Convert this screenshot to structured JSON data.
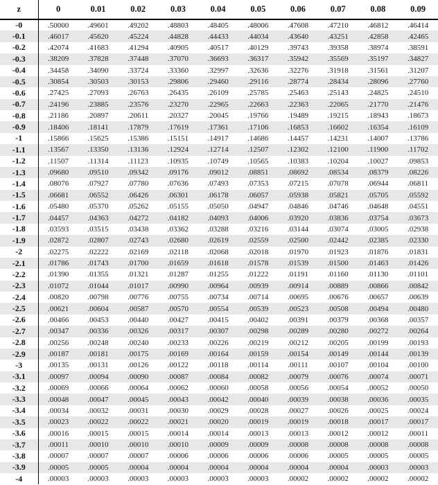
{
  "colors": {
    "stripe": "#e7e7e7",
    "rule": "#000000",
    "text": "#222222",
    "background": "#ffffff"
  },
  "table": {
    "corner_label": "z",
    "col_headers": [
      "0",
      "0.01",
      "0.02",
      "0.03",
      "0.04",
      "0.05",
      "0.06",
      "0.07",
      "0.08",
      "0.09"
    ],
    "rows": [
      {
        "z": "-0",
        "values": [
          ".50000",
          ".49601",
          ".49202",
          ".48803",
          ".48405",
          ".48006",
          ".47608",
          ".47210",
          ".46812",
          ".46414"
        ]
      },
      {
        "z": "-0.1",
        "values": [
          ".46017",
          ".45620",
          ".45224",
          ".44828",
          ".44433",
          ".44034",
          ".43640",
          ".43251",
          ".42858",
          ".42465"
        ]
      },
      {
        "z": "-0.2",
        "values": [
          ".42074",
          ".41683",
          ".41294",
          ".40905",
          ".40517",
          ".40129",
          ".39743",
          ".39358",
          ".38974",
          ".38591"
        ]
      },
      {
        "z": "-0.3",
        "values": [
          ".38209",
          ".37828",
          ".37448",
          ".37070",
          ".36693",
          ".36317",
          ".35942",
          ".35569",
          ".35197",
          ".34827"
        ]
      },
      {
        "z": "-0.4",
        "values": [
          ".34458",
          ".34090",
          ".33724",
          ".33360",
          ".32997",
          ".32636",
          ".32276",
          ".31918",
          ".31561",
          ".31207"
        ]
      },
      {
        "z": "-0.5",
        "values": [
          ".30854",
          ".30503",
          ".30153",
          ".29806",
          ".29460",
          ".29116",
          ".28774",
          ".28434",
          ".28096",
          ".27760"
        ]
      },
      {
        "z": "-0.6",
        "values": [
          ".27425",
          ".27093",
          ".26763",
          ".26435",
          ".26109",
          ".25785",
          ".25463",
          ".25143",
          ".24825",
          ".24510"
        ]
      },
      {
        "z": "-0.7",
        "values": [
          ".24196",
          ".23885",
          ".23576",
          ".23270",
          ".22965",
          ".22663",
          ".22363",
          ".22065",
          ".21770",
          ".21476"
        ]
      },
      {
        "z": "-0.8",
        "values": [
          ".21186",
          ".20897",
          ".20611",
          ".20327",
          ".20045",
          ".19766",
          ".19489",
          ".19215",
          ".18943",
          ".18673"
        ]
      },
      {
        "z": "-0.9",
        "values": [
          ".18406",
          ".18141",
          ".17879",
          ".17619",
          ".17361",
          ".17106",
          ".16853",
          ".16602",
          ".16354",
          ".16109"
        ]
      },
      {
        "z": "-1",
        "values": [
          ".15866",
          ".15625",
          ".15386",
          ".15151",
          ".14917",
          ".14686",
          ".14457",
          ".14231",
          ".14007",
          ".13786"
        ]
      },
      {
        "z": "-1.1",
        "values": [
          ".13567",
          ".13350",
          ".13136",
          ".12924",
          ".12714",
          ".12507",
          ".12302",
          ".12100",
          ".11900",
          ".11702"
        ]
      },
      {
        "z": "-1.2",
        "values": [
          ".11507",
          ".11314",
          ".11123",
          ".10935",
          ".10749",
          ".10565",
          ".10383",
          ".10204",
          ".10027",
          ".09853"
        ]
      },
      {
        "z": "-1.3",
        "values": [
          ".09680",
          ".09510",
          ".09342",
          ".09176",
          ".09012",
          ".08851",
          ".08692",
          ".08534",
          ".08379",
          ".08226"
        ]
      },
      {
        "z": "-1.4",
        "values": [
          ".08076",
          ".07927",
          ".07780",
          ".07636",
          ".07493",
          ".07353",
          ".07215",
          ".07078",
          ".06944",
          ".06811"
        ]
      },
      {
        "z": "-1.5",
        "values": [
          ".06681",
          ".06552",
          ".06426",
          ".06301",
          ".06178",
          ".06057",
          ".05938",
          ".05821",
          ".05705",
          ".05592"
        ]
      },
      {
        "z": "-1.6",
        "values": [
          ".05480",
          ".05370",
          ".05262",
          ".05155",
          ".05050",
          ".04947",
          ".04846",
          ".04746",
          ".04648",
          ".04551"
        ]
      },
      {
        "z": "-1.7",
        "values": [
          ".04457",
          ".04363",
          ".04272",
          ".04182",
          ".04093",
          ".04006",
          ".03920",
          ".03836",
          ".03754",
          ".03673"
        ]
      },
      {
        "z": "-1.8",
        "values": [
          ".03593",
          ".03515",
          ".03438",
          ".03362",
          ".03288",
          ".03216",
          ".03144",
          ".03074",
          ".03005",
          ".02938"
        ]
      },
      {
        "z": "-1.9",
        "values": [
          ".02872",
          ".02807",
          ".02743",
          ".02680",
          ".02619",
          ".02559",
          ".02500",
          ".02442",
          ".02385",
          ".02330"
        ]
      },
      {
        "z": "-2",
        "values": [
          ".02275",
          ".02222",
          ".02169",
          ".02118",
          ".02068",
          ".02018",
          ".01970",
          ".01923",
          ".01876",
          ".01831"
        ]
      },
      {
        "z": "-2.1",
        "values": [
          ".01786",
          ".01743",
          ".01700",
          ".01659",
          ".01618",
          ".01578",
          ".01539",
          ".01500",
          ".01463",
          ".01426"
        ]
      },
      {
        "z": "-2.2",
        "values": [
          ".01390",
          ".01355",
          ".01321",
          ".01287",
          ".01255",
          ".01222",
          ".01191",
          ".01160",
          ".01130",
          ".01101"
        ]
      },
      {
        "z": "-2.3",
        "values": [
          ".01072",
          ".01044",
          ".01017",
          ".00990",
          ".00964",
          ".00939",
          ".00914",
          ".00889",
          ".00866",
          ".00842"
        ]
      },
      {
        "z": "-2.4",
        "values": [
          ".00820",
          ".00798",
          ".00776",
          ".00755",
          ".00734",
          ".00714",
          ".00695",
          ".00676",
          ".00657",
          ".00639"
        ]
      },
      {
        "z": "-2.5",
        "values": [
          ".00621",
          ".00604",
          ".00587",
          ".00570",
          ".00554",
          ".00539",
          ".00523",
          ".00508",
          ".00494",
          ".00480"
        ]
      },
      {
        "z": "-2.6",
        "values": [
          ".00466",
          ".00453",
          ".00440",
          ".00427",
          ".00415",
          ".00402",
          ".00391",
          ".00379",
          ".00368",
          ".00357"
        ]
      },
      {
        "z": "-2.7",
        "values": [
          ".00347",
          ".00336",
          ".00326",
          ".00317",
          ".00307",
          ".00298",
          ".00289",
          ".00280",
          ".00272",
          ".00264"
        ]
      },
      {
        "z": "-2.8",
        "values": [
          ".00256",
          ".00248",
          ".00240",
          ".00233",
          ".00226",
          ".00219",
          ".00212",
          ".00205",
          ".00199",
          ".00193"
        ]
      },
      {
        "z": "-2.9",
        "values": [
          ".00187",
          ".00181",
          ".00175",
          ".00169",
          ".00164",
          ".00159",
          ".00154",
          ".00149",
          ".00144",
          ".00139"
        ]
      },
      {
        "z": "-3",
        "values": [
          ".00135",
          ".00131",
          ".00126",
          ".00122",
          ".00118",
          ".00114",
          ".00111",
          ".00107",
          ".00104",
          ".00100"
        ]
      },
      {
        "z": "-3.1",
        "values": [
          ".00097",
          ".00094",
          ".00090",
          ".00087",
          ".00084",
          ".00082",
          ".00079",
          ".00076",
          ".00074",
          ".00071"
        ]
      },
      {
        "z": "-3.2",
        "values": [
          ".00069",
          ".00066",
          ".00064",
          ".00062",
          ".00060",
          ".00058",
          ".00056",
          ".00054",
          ".00052",
          ".00050"
        ]
      },
      {
        "z": "-3.3",
        "values": [
          ".00048",
          ".00047",
          ".00045",
          ".00043",
          ".00042",
          ".00040",
          ".00039",
          ".00038",
          ".00036",
          ".00035"
        ]
      },
      {
        "z": "-3.4",
        "values": [
          ".00034",
          ".00032",
          ".00031",
          ".00030",
          ".00029",
          ".00028",
          ".00027",
          ".00026",
          ".00025",
          ".00024"
        ]
      },
      {
        "z": "-3.5",
        "values": [
          ".00023",
          ".00022",
          ".00022",
          ".00021",
          ".00020",
          ".00019",
          ".00019",
          ".00018",
          ".00017",
          ".00017"
        ]
      },
      {
        "z": "-3.6",
        "values": [
          ".00016",
          ".00015",
          ".00015",
          ".00014",
          ".00014",
          ".00013",
          ".00013",
          ".00012",
          ".00012",
          ".00011"
        ]
      },
      {
        "z": "-3.7",
        "values": [
          ".00011",
          ".00010",
          ".00010",
          ".00010",
          ".00009",
          ".00009",
          ".00008",
          ".00008",
          ".00008",
          ".00008"
        ]
      },
      {
        "z": "-3.8",
        "values": [
          ".00007",
          ".00007",
          ".00007",
          ".00006",
          ".00006",
          ".00006",
          ".00006",
          ".00005",
          ".00005",
          ".00005"
        ]
      },
      {
        "z": "-3.9",
        "values": [
          ".00005",
          ".00005",
          ".00004",
          ".00004",
          ".00004",
          ".00004",
          ".00004",
          ".00004",
          ".00003",
          ".00003"
        ]
      },
      {
        "z": "-4",
        "values": [
          ".00003",
          ".00003",
          ".00003",
          ".00003",
          ".00003",
          ".00003",
          ".00002",
          ".00002",
          ".00002",
          ".00002"
        ]
      }
    ]
  }
}
